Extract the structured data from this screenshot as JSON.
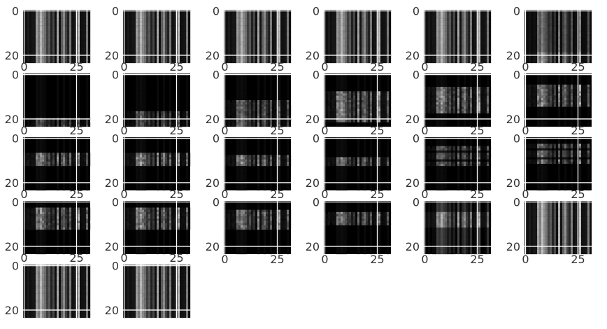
{
  "chart_data": {
    "type": "heatmap",
    "layout": {
      "rows": 5,
      "cols": 6
    },
    "colormap": "gray",
    "grid": true,
    "grid_color": "#ffffff",
    "axes_style": "seaborn-darkgrid",
    "x_range": [
      0,
      31
    ],
    "y_range": [
      24,
      0
    ],
    "image_size": {
      "height": 24,
      "width": 32
    },
    "x_ticks": [
      0,
      25
    ],
    "y_ticks": [
      0,
      20
    ],
    "column_profile": [
      0.07,
      0.07,
      0.12,
      0.07,
      0.1,
      0.1,
      0.7,
      0.55,
      0.82,
      0.62,
      0.5,
      0.28,
      0.4,
      0.15,
      0.32,
      0.06,
      0.75,
      0.08,
      0.42,
      0.62,
      0.3,
      0.15,
      0.55,
      0.07,
      0.1,
      0.3,
      0.85,
      0.07,
      0.08,
      0.1,
      0.55,
      0.06
    ],
    "panels": [
      {
        "kind": "bars",
        "intensity": 0.9
      },
      {
        "kind": "bars",
        "intensity": 0.9
      },
      {
        "kind": "bars",
        "intensity": 0.9
      },
      {
        "kind": "bars",
        "intensity": 0.9
      },
      {
        "kind": "bars",
        "intensity": 0.9
      },
      {
        "kind": "bars_bright_bottom",
        "intensity": 0.75
      },
      {
        "kind": "band",
        "row_start": 20,
        "row_end": 24,
        "intensity": 0.55
      },
      {
        "kind": "band",
        "row_start": 17,
        "row_end": 24,
        "intensity": 0.6
      },
      {
        "kind": "band",
        "row_start": 12,
        "row_end": 24,
        "intensity": 0.7
      },
      {
        "kind": "band",
        "row_start": 8,
        "row_end": 22,
        "intensity": 0.9
      },
      {
        "kind": "band",
        "row_start": 6,
        "row_end": 18,
        "intensity": 0.9
      },
      {
        "kind": "band",
        "row_start": 5,
        "row_end": 15,
        "intensity": 0.85
      },
      {
        "kind": "band",
        "row_start": 7,
        "row_end": 13,
        "intensity": 0.9
      },
      {
        "kind": "band",
        "row_start": 7,
        "row_end": 13,
        "intensity": 0.9
      },
      {
        "kind": "band",
        "row_start": 8,
        "row_end": 13,
        "intensity": 0.85
      },
      {
        "kind": "band",
        "row_start": 9,
        "row_end": 13,
        "intensity": 0.8
      },
      {
        "kind": "double_band",
        "row_start": 4,
        "row_end": 13,
        "intensity": 0.7
      },
      {
        "kind": "double_band",
        "row_start": 3,
        "row_end": 12,
        "intensity": 0.75
      },
      {
        "kind": "band",
        "row_start": 3,
        "row_end": 13,
        "intensity": 0.85
      },
      {
        "kind": "band",
        "row_start": 3,
        "row_end": 13,
        "intensity": 0.9
      },
      {
        "kind": "band",
        "row_start": 4,
        "row_end": 13,
        "intensity": 0.85
      },
      {
        "kind": "band",
        "row_start": 5,
        "row_end": 11,
        "intensity": 0.75
      },
      {
        "kind": "bars_faint_band",
        "intensity": 0.6
      },
      {
        "kind": "bars",
        "intensity": 0.95
      },
      {
        "kind": "bars",
        "intensity": 0.9
      },
      {
        "kind": "bars",
        "intensity": 0.9
      },
      {
        "kind": "empty"
      },
      {
        "kind": "empty"
      },
      {
        "kind": "empty"
      },
      {
        "kind": "empty"
      }
    ]
  }
}
